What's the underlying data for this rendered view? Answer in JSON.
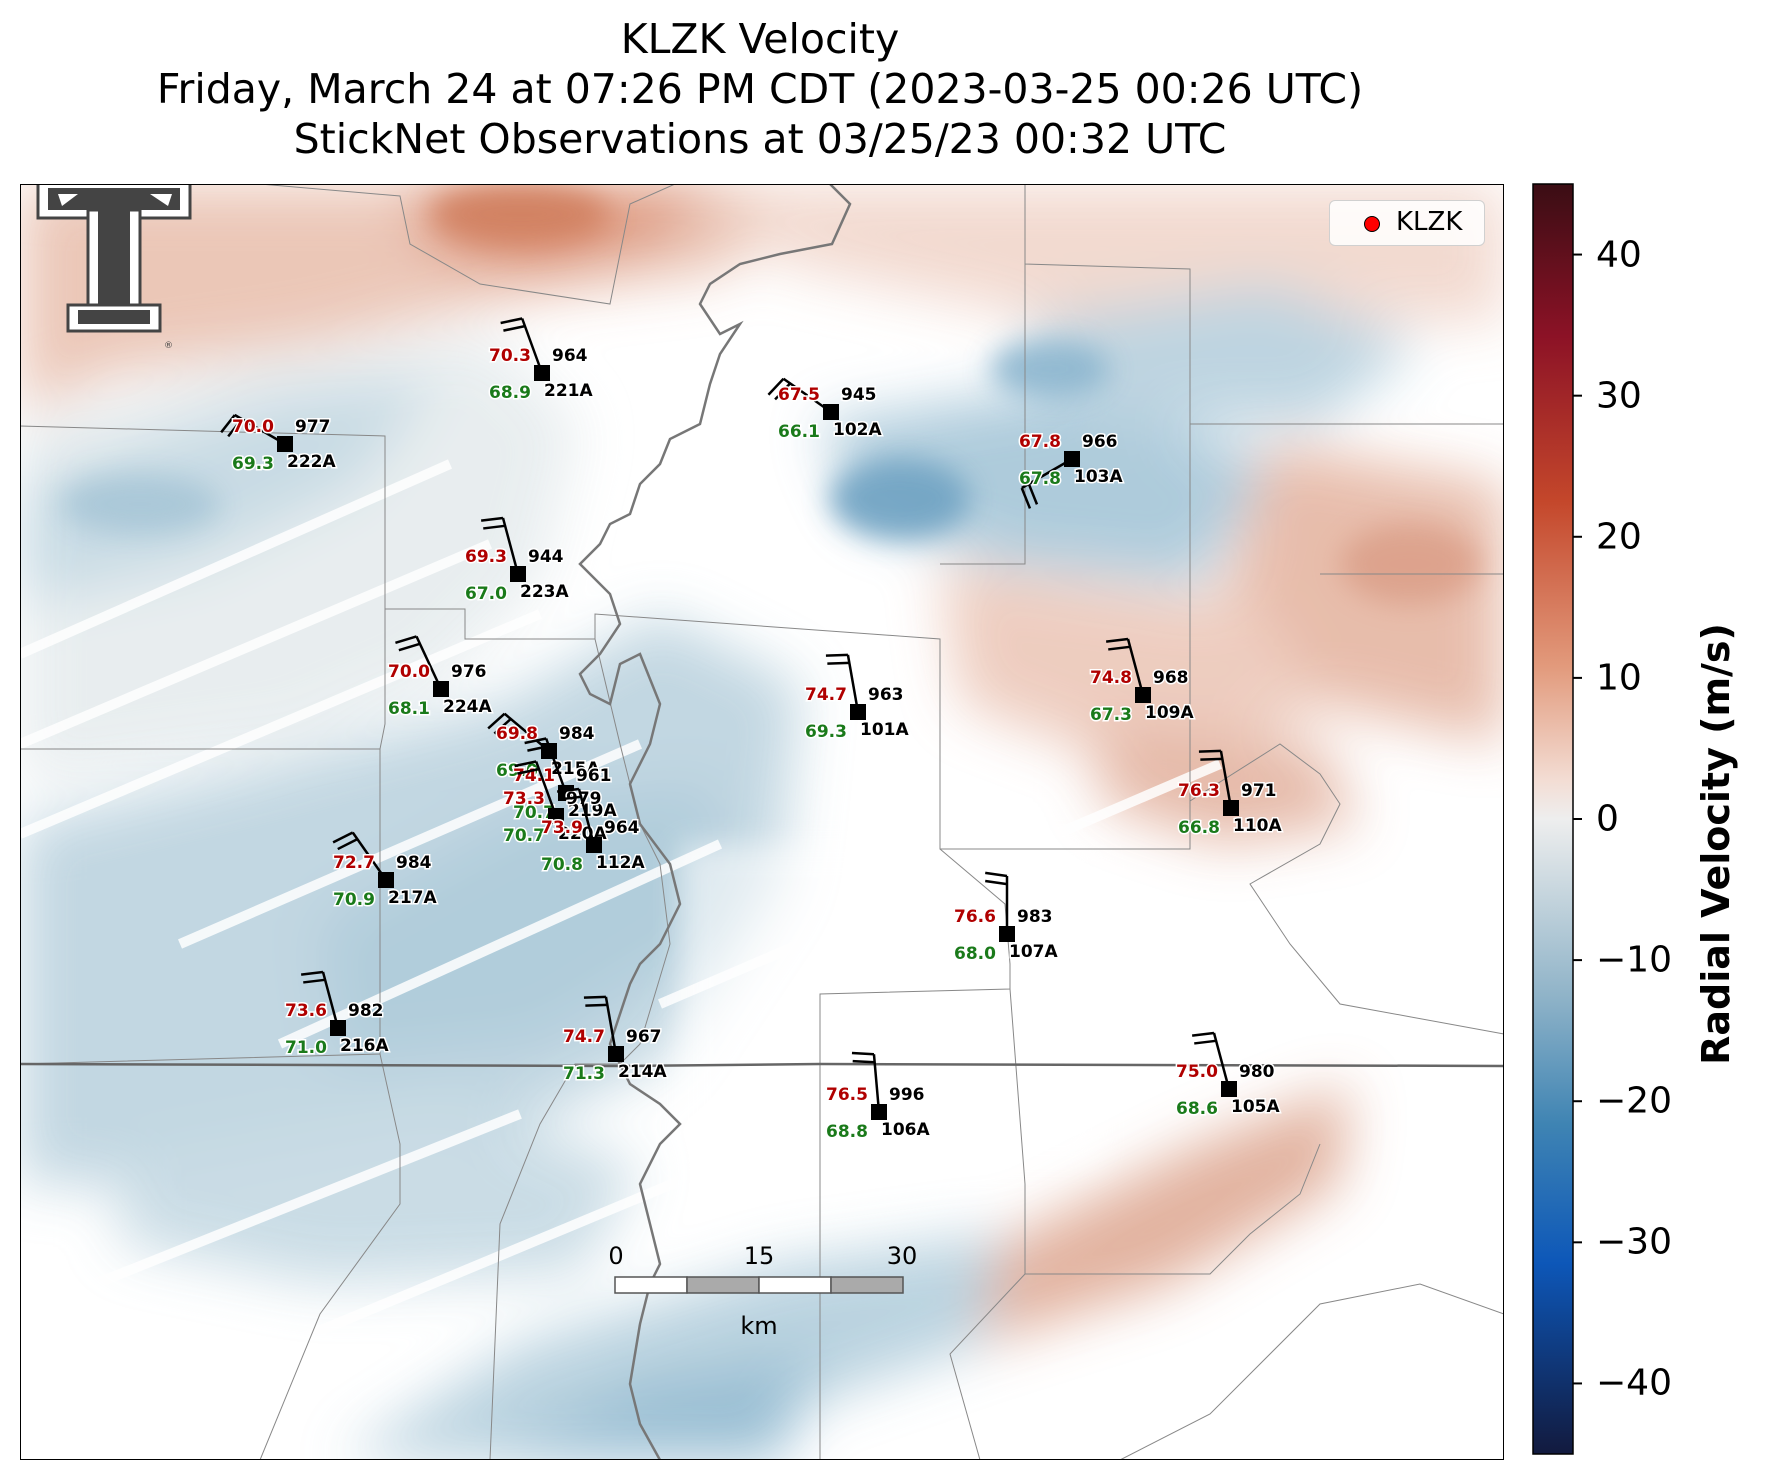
{
  "title": {
    "line1": "KLZK Velocity",
    "line2": "Friday, March 24 at 07:26 PM CDT (2023-03-25 00:26 UTC)",
    "line3": "StickNet Observations at 03/25/23 00:32 UTC"
  },
  "legend": {
    "label": "KLZK",
    "marker_color": "#ff0000"
  },
  "colorbar": {
    "label": "Radial Velocity (m/s)",
    "min": -45,
    "max": 45,
    "ticks": [
      40,
      30,
      20,
      10,
      0,
      -10,
      -20,
      -30,
      -40
    ],
    "tick_labels": [
      "40",
      "30",
      "20",
      "10",
      "0",
      "−10",
      "−20",
      "−30",
      "−40"
    ]
  },
  "scalebar": {
    "labels": [
      "0",
      "15",
      "30"
    ],
    "unit": "km"
  },
  "stations": [
    {
      "id": "221A",
      "temp": "70.3",
      "dew": "68.9",
      "pres": "964"
    },
    {
      "id": "222A",
      "temp": "70.0",
      "dew": "69.3",
      "pres": "977"
    },
    {
      "id": "102A",
      "temp": "67.5",
      "dew": "66.1",
      "pres": "945"
    },
    {
      "id": "103A",
      "temp": "67.8",
      "dew": "67.8",
      "pres": "966"
    },
    {
      "id": "223A",
      "temp": "69.3",
      "dew": "67.0",
      "pres": "944"
    },
    {
      "id": "224A",
      "temp": "70.0",
      "dew": "68.1",
      "pres": "976"
    },
    {
      "id": "215A",
      "temp": "69.8",
      "dew": "69.0",
      "pres": "984"
    },
    {
      "id": "101A",
      "temp": "74.7",
      "dew": "69.3",
      "pres": "963"
    },
    {
      "id": "109A",
      "temp": "74.8",
      "dew": "67.3",
      "pres": "968"
    },
    {
      "id": "219A",
      "temp": "74.1",
      "dew": "70.7",
      "pres": "961"
    },
    {
      "id": "220A",
      "temp": "73.3",
      "dew": "70.7",
      "pres": "979"
    },
    {
      "id": "112A",
      "temp": "73.9",
      "dew": "70.8",
      "pres": "964"
    },
    {
      "id": "110A",
      "temp": "76.3",
      "dew": "66.8",
      "pres": "971"
    },
    {
      "id": "217A",
      "temp": "72.7",
      "dew": "70.9",
      "pres": "984"
    },
    {
      "id": "107A",
      "temp": "76.6",
      "dew": "68.0",
      "pres": "983"
    },
    {
      "id": "216A",
      "temp": "73.6",
      "dew": "71.0",
      "pres": "982"
    },
    {
      "id": "214A",
      "temp": "74.7",
      "dew": "71.3",
      "pres": "967"
    },
    {
      "id": "105A",
      "temp": "75.0",
      "dew": "68.6",
      "pres": "980"
    },
    {
      "id": "106A",
      "temp": "76.5",
      "dew": "68.8",
      "pres": "996"
    }
  ]
}
